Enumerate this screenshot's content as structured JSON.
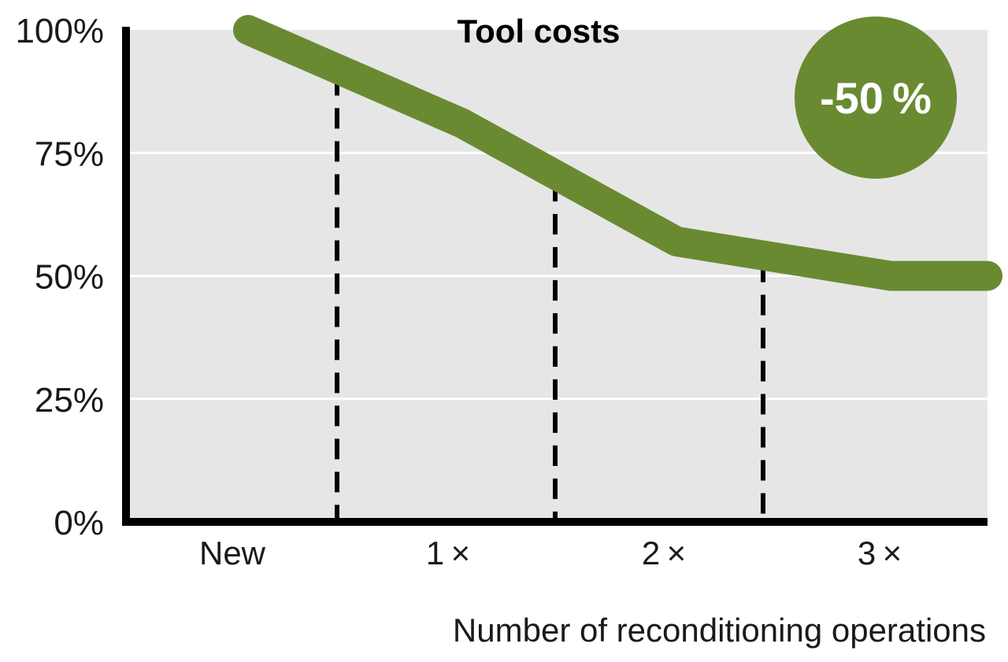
{
  "chart_data": {
    "type": "line",
    "title": "Tool costs",
    "xlabel": "Number of reconditioning operations",
    "ylabel": "",
    "categories": [
      "New",
      "1 ×",
      "2 ×",
      "3 ×"
    ],
    "y_tick_labels": [
      "0%",
      "25%",
      "50%",
      "75%",
      "100%"
    ],
    "y_ticks": [
      0,
      25,
      50,
      75,
      100
    ],
    "ylim": [
      0,
      100
    ],
    "grid": true,
    "series": [
      {
        "x": [
          0,
          1,
          2,
          3,
          4.2
        ],
        "values": [
          100,
          81,
          57,
          50,
          50
        ]
      }
    ],
    "annotation": "-50 %",
    "colors": {
      "line": "#6a8a32",
      "badge": "#6a8a32",
      "plot_background": "#e6e6e6",
      "grid": "#ffffff",
      "axis": "#000000"
    }
  }
}
